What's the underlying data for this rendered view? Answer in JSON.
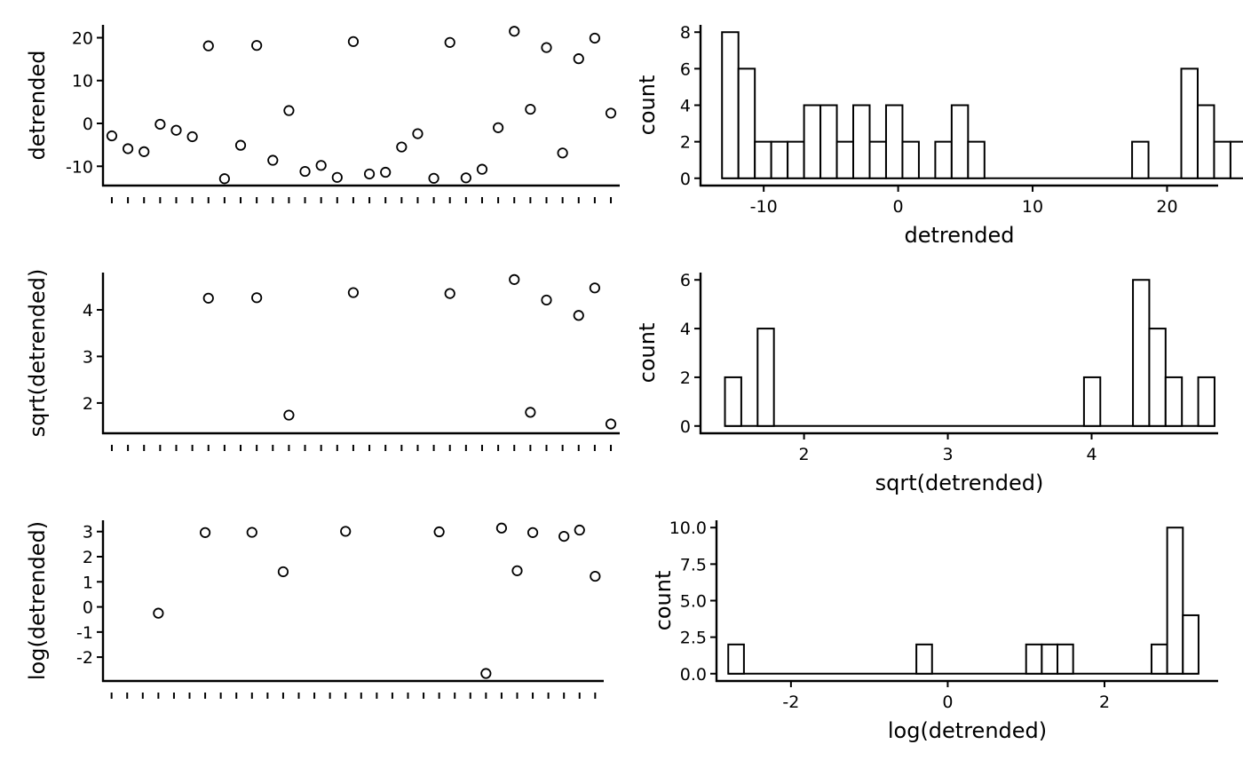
{
  "style": {
    "ink": "#000000",
    "background": "#ffffff",
    "bar_fill": "#ffffff",
    "grid": false,
    "legend": "none"
  },
  "chart_data": [
    {
      "id": "scatter_detrended",
      "type": "scatter",
      "xlabel": "",
      "ylabel": "detrended",
      "ylim": [
        -14.5,
        23
      ],
      "yticks": [
        -10,
        0,
        10,
        20
      ],
      "ytick_labels": [
        "-10",
        "0",
        "10",
        "20"
      ],
      "n_x_ticks": 32,
      "x": [
        1,
        2,
        3,
        4,
        5,
        6,
        7,
        8,
        9,
        10,
        11,
        12,
        13,
        14,
        15,
        16,
        17,
        18,
        19,
        20,
        21,
        22,
        23,
        24,
        25,
        26,
        27,
        28,
        29,
        30,
        31,
        32
      ],
      "y": [
        -2.9,
        -5.9,
        -6.6,
        -0.2,
        -1.6,
        -3.1,
        18.1,
        -12.9,
        -5.1,
        18.2,
        -8.6,
        3.0,
        -11.2,
        -9.8,
        -12.6,
        19.1,
        -11.8,
        -11.4,
        -5.5,
        -2.4,
        -12.8,
        18.9,
        -12.7,
        -10.7,
        -1.0,
        21.5,
        3.3,
        17.7,
        -6.9,
        15.1,
        19.9,
        2.4
      ]
    },
    {
      "id": "hist_detrended",
      "type": "bar",
      "xlabel": "detrended",
      "ylabel": "count",
      "xlim": [
        -14.7,
        23.8
      ],
      "ylim": [
        -0.4,
        8.4
      ],
      "xticks": [
        -10,
        0,
        10,
        20
      ],
      "xtick_labels": [
        "-10",
        "0",
        "10",
        "20"
      ],
      "yticks": [
        0,
        2,
        4,
        6,
        8
      ],
      "ytick_labels": [
        "0",
        "2",
        "4",
        "6",
        "8"
      ],
      "bin_start": -13.1,
      "bin_width": 1.22,
      "counts": [
        8,
        6,
        2,
        2,
        2,
        4,
        4,
        2,
        4,
        2,
        4,
        2,
        0,
        2,
        4,
        2,
        0,
        0,
        0,
        0,
        0,
        0,
        0,
        0,
        0,
        2,
        0,
        0,
        6,
        4,
        2,
        2
      ]
    },
    {
      "id": "scatter_sqrt",
      "type": "scatter",
      "xlabel": "",
      "ylabel": "sqrt(detrended)",
      "ylim": [
        1.35,
        4.8
      ],
      "yticks": [
        2,
        3,
        4
      ],
      "ytick_labels": [
        "2",
        "3",
        "4"
      ],
      "n_x_ticks": 32,
      "x": [
        7,
        10,
        12,
        16,
        22,
        26,
        27,
        28,
        30,
        31,
        32
      ],
      "y": [
        4.25,
        4.26,
        1.74,
        4.37,
        4.35,
        4.65,
        1.8,
        4.21,
        3.88,
        4.47,
        1.55
      ]
    },
    {
      "id": "hist_sqrt",
      "type": "bar",
      "xlabel": "sqrt(detrended)",
      "ylabel": "count",
      "xlim": [
        1.28,
        4.88
      ],
      "ylim": [
        -0.3,
        6.3
      ],
      "xticks": [
        2,
        3,
        4
      ],
      "xtick_labels": [
        "2",
        "3",
        "4"
      ],
      "yticks": [
        0,
        2,
        4,
        6
      ],
      "ytick_labels": [
        "0",
        "2",
        "4",
        "6"
      ],
      "bin_start": 1.45,
      "bin_width": 0.1135,
      "counts": [
        2,
        0,
        4,
        0,
        0,
        0,
        0,
        0,
        0,
        0,
        0,
        0,
        0,
        0,
        0,
        0,
        0,
        0,
        0,
        0,
        0,
        0,
        2,
        0,
        0,
        6,
        4,
        2,
        0,
        2
      ]
    },
    {
      "id": "scatter_log",
      "type": "scatter",
      "xlabel": "",
      "ylabel": "log(detrended)",
      "ylim": [
        -2.95,
        3.45
      ],
      "yticks": [
        -2,
        -1,
        0,
        1,
        2,
        3
      ],
      "ytick_labels": [
        "-2",
        "-1",
        "0",
        "1",
        "2",
        "3"
      ],
      "n_x_ticks": 32,
      "x": [
        4,
        7,
        10,
        12,
        16,
        22,
        25,
        26,
        27,
        28,
        30,
        31,
        32
      ],
      "y": [
        -0.25,
        2.96,
        2.97,
        1.4,
        3.01,
        2.99,
        -2.65,
        3.14,
        1.44,
        2.96,
        2.81,
        3.06,
        1.22
      ]
    },
    {
      "id": "hist_log",
      "type": "bar",
      "xlabel": "log(detrended)",
      "ylabel": "count",
      "xlim": [
        -2.95,
        3.45
      ],
      "ylim": [
        -0.5,
        10.5
      ],
      "xticks": [
        -2,
        0,
        2
      ],
      "xtick_labels": [
        "-2",
        "0",
        "2"
      ],
      "yticks": [
        0,
        2.5,
        5,
        7.5,
        10
      ],
      "ytick_labels": [
        "0.0",
        "2.5",
        "5.0",
        "7.5",
        "10.0"
      ],
      "bin_start": -2.8,
      "bin_width": 0.2,
      "counts": [
        2,
        0,
        0,
        0,
        0,
        0,
        0,
        0,
        0,
        0,
        0,
        0,
        2,
        0,
        0,
        0,
        0,
        0,
        0,
        2,
        2,
        2,
        0,
        0,
        0,
        0,
        0,
        2,
        10,
        4
      ]
    }
  ]
}
